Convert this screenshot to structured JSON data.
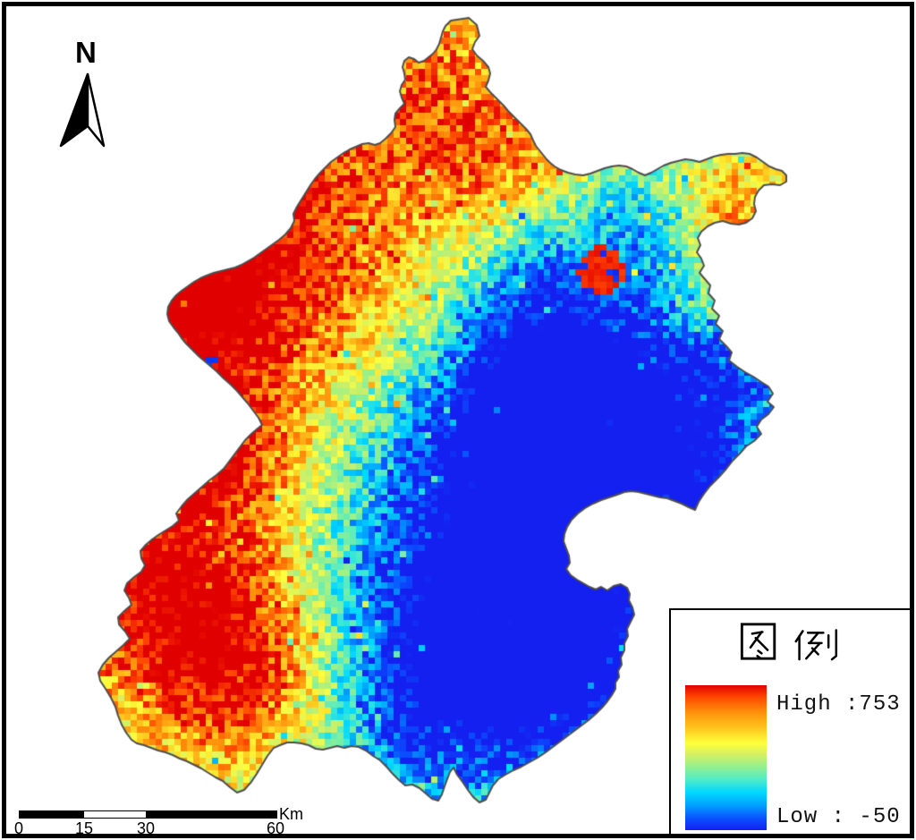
{
  "north_arrow": {
    "label": "N"
  },
  "scale_bar": {
    "tick_labels": [
      "0",
      "15",
      "30",
      "60"
    ],
    "unit_label": "Km"
  },
  "legend": {
    "title": "图 例",
    "high_label": "High :753",
    "low_label": "Low : -50",
    "high_value": 753,
    "low_value": -50,
    "ramp_colors": [
      "#e10000",
      "#ff4600",
      "#ff8c0a",
      "#ffc81e",
      "#ffff3c",
      "#d2f064",
      "#96f08c",
      "#50ecc8",
      "#00d8ff",
      "#00a0ff",
      "#0a50ff",
      "#1420f0"
    ]
  },
  "map": {
    "boundary_color": "#4d4d4d",
    "background_color": "#ffffff",
    "frame_color": "#000000"
  }
}
